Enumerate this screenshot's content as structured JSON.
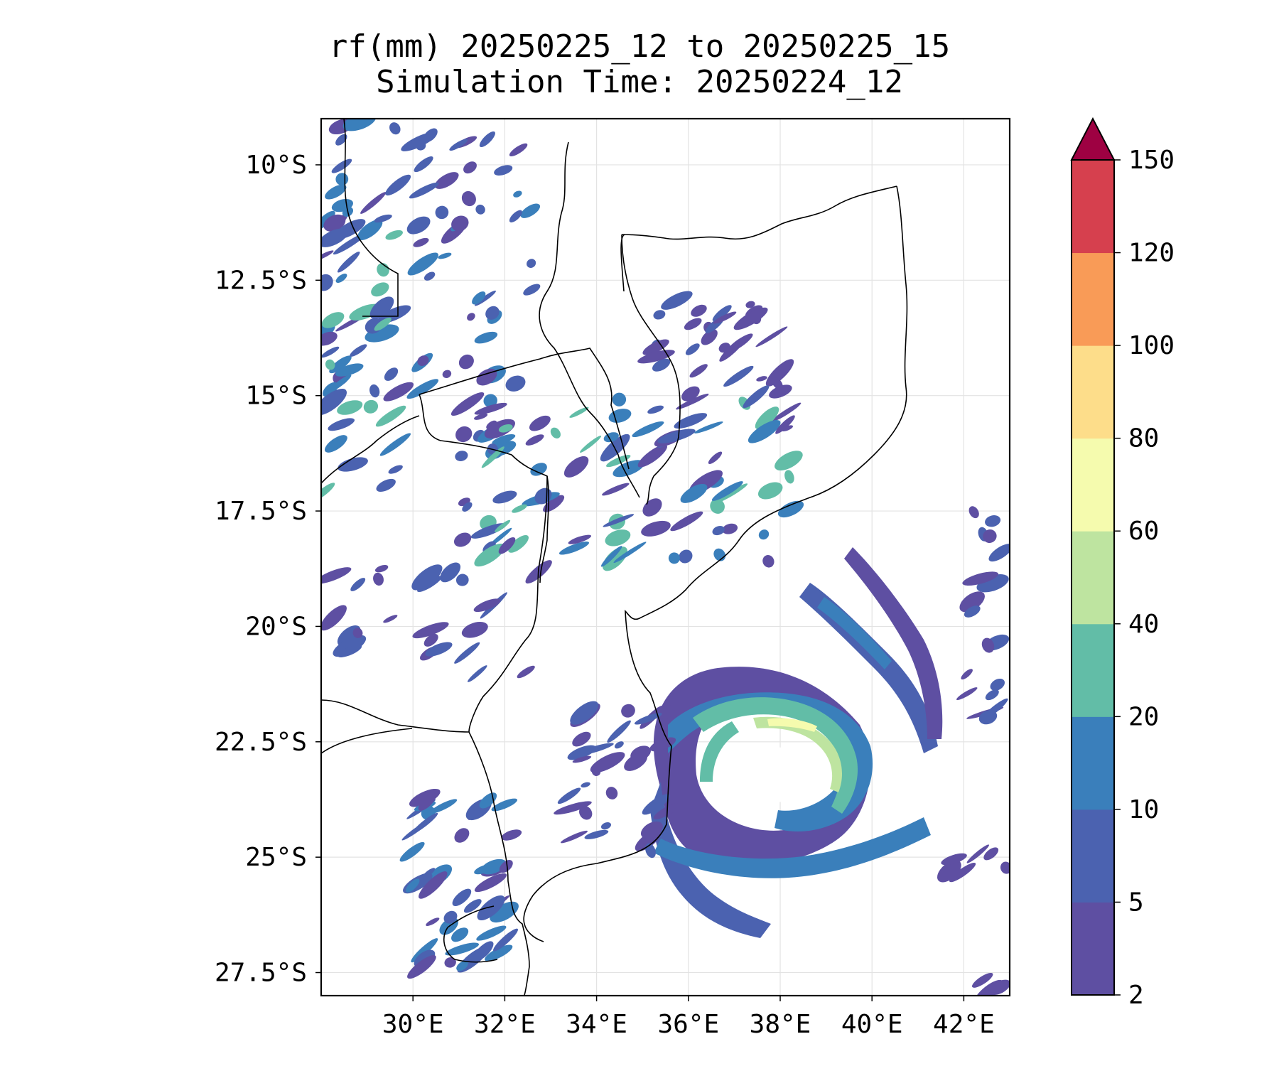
{
  "title": {
    "line1": "rf(mm) 20250225_12 to 20250225_15",
    "line2": "Simulation Time: 20250224_12"
  },
  "map": {
    "extent": {
      "lon_min": 28.0,
      "lon_max": 43.0,
      "lat_min": -28.0,
      "lat_max": -9.0
    },
    "lat_ticks": [
      {
        "value": -10.0,
        "label": "10°S"
      },
      {
        "value": -12.5,
        "label": "12.5°S"
      },
      {
        "value": -15.0,
        "label": "15°S"
      },
      {
        "value": -17.5,
        "label": "17.5°S"
      },
      {
        "value": -20.0,
        "label": "20°S"
      },
      {
        "value": -22.5,
        "label": "22.5°S"
      },
      {
        "value": -25.0,
        "label": "25°S"
      },
      {
        "value": -27.5,
        "label": "27.5°S"
      }
    ],
    "lon_ticks": [
      {
        "value": 30,
        "label": "30°E"
      },
      {
        "value": 32,
        "label": "32°E"
      },
      {
        "value": 34,
        "label": "34°E"
      },
      {
        "value": 36,
        "label": "36°E"
      },
      {
        "value": 38,
        "label": "38°E"
      },
      {
        "value": 40,
        "label": "40°E"
      },
      {
        "value": 42,
        "label": "42°E"
      }
    ],
    "cyclone_center": {
      "lon": 37.7,
      "lat": -23.4
    }
  },
  "colorbar": {
    "levels": [
      "2",
      "5",
      "10",
      "20",
      "40",
      "60",
      "80",
      "100",
      "120",
      "150"
    ],
    "colors": [
      "#5e4fa2",
      "#4b62b0",
      "#3a7fbb",
      "#62bda7",
      "#bee4a0",
      "#f5fbae",
      "#fddd8a",
      "#f99b57",
      "#d6404e"
    ],
    "extend_color": "#9e0142"
  }
}
